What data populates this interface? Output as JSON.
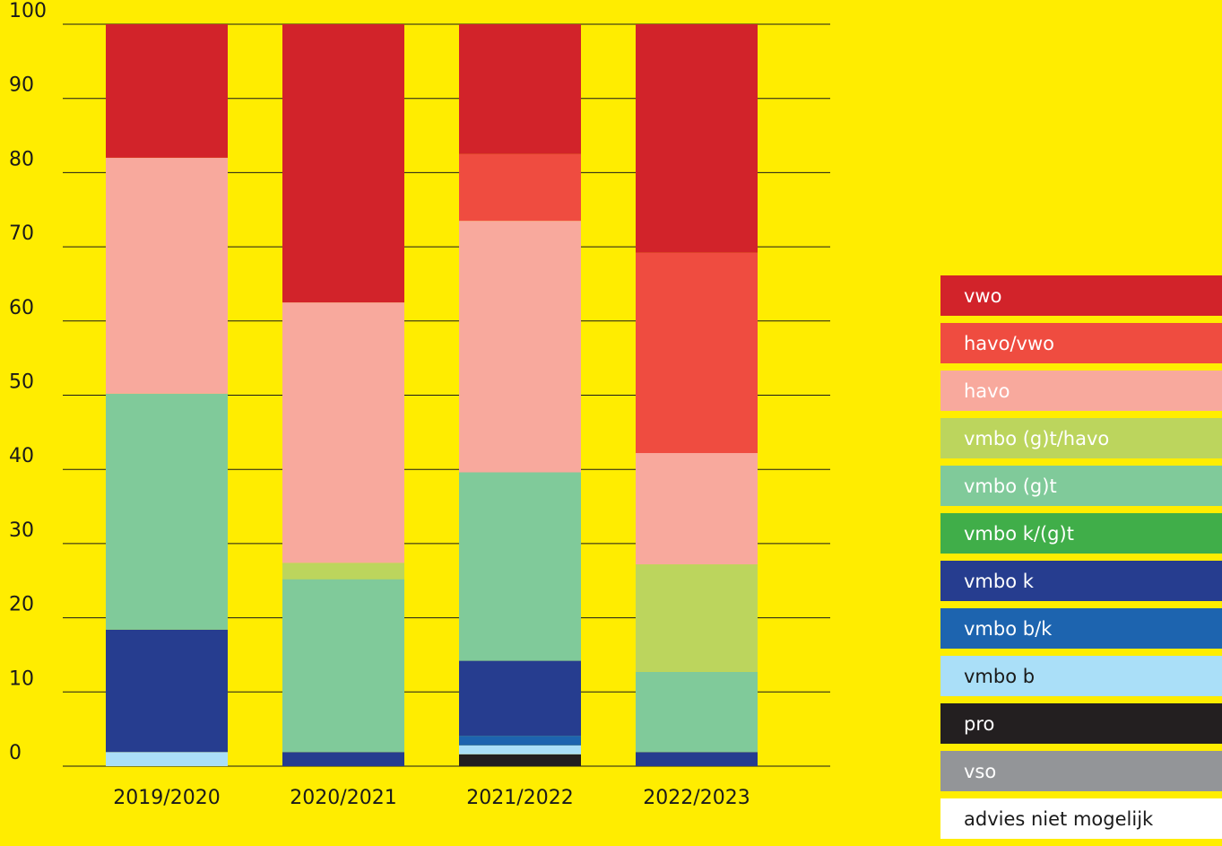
{
  "chart_data": {
    "type": "bar",
    "stacked": true,
    "categories": [
      "2019/2020",
      "2020/2021",
      "2021/2022",
      "2022/2023"
    ],
    "ylim": [
      0,
      100
    ],
    "yticks": [
      0,
      10,
      20,
      30,
      40,
      50,
      60,
      70,
      80,
      90,
      100
    ],
    "grid": true,
    "legend_position": "right",
    "series": [
      {
        "name": "advies niet mogelijk",
        "color": "#FFFFFF",
        "text_color": "#1A1A1A",
        "values": [
          0,
          0,
          0,
          0
        ]
      },
      {
        "name": "vso",
        "color": "#939598",
        "text_color": "#FFFFFF",
        "values": [
          0,
          0,
          0,
          0
        ]
      },
      {
        "name": "pro",
        "color": "#231F20",
        "text_color": "#FFFFFF",
        "values": [
          0,
          0,
          1.6,
          0
        ]
      },
      {
        "name": "vmbo b",
        "color": "#AADFF8",
        "text_color": "#1A1A1A",
        "values": [
          1.9,
          0,
          1.2,
          0
        ]
      },
      {
        "name": "vmbo b/k",
        "color": "#1D64AF",
        "text_color": "#FFFFFF",
        "values": [
          0,
          0,
          1.3,
          0
        ]
      },
      {
        "name": "vmbo k",
        "color": "#263D8F",
        "text_color": "#FFFFFF",
        "values": [
          16.5,
          1.9,
          10.1,
          1.9
        ]
      },
      {
        "name": "vmbo k/(g)t",
        "color": "#40AE49",
        "text_color": "#FFFFFF",
        "values": [
          0,
          0,
          0,
          0
        ]
      },
      {
        "name": "vmbo (g)t",
        "color": "#80CA9A",
        "text_color": "#FFFFFF",
        "values": [
          31.8,
          23.3,
          25.4,
          10.8
        ]
      },
      {
        "name": "vmbo (g)t/havo",
        "color": "#BCD55D",
        "text_color": "#FFFFFF",
        "values": [
          0,
          2.2,
          0,
          14.5
        ]
      },
      {
        "name": "havo",
        "color": "#F8A99D",
        "text_color": "#FFFFFF",
        "values": [
          31.8,
          35.1,
          33.9,
          15.0
        ]
      },
      {
        "name": "havo/vwo",
        "color": "#EF4C40",
        "text_color": "#FFFFFF",
        "values": [
          0,
          0,
          9.0,
          27.0
        ]
      },
      {
        "name": "vwo",
        "color": "#D2232A",
        "text_color": "#FFFFFF",
        "values": [
          18.0,
          37.5,
          17.5,
          30.8
        ]
      }
    ]
  }
}
